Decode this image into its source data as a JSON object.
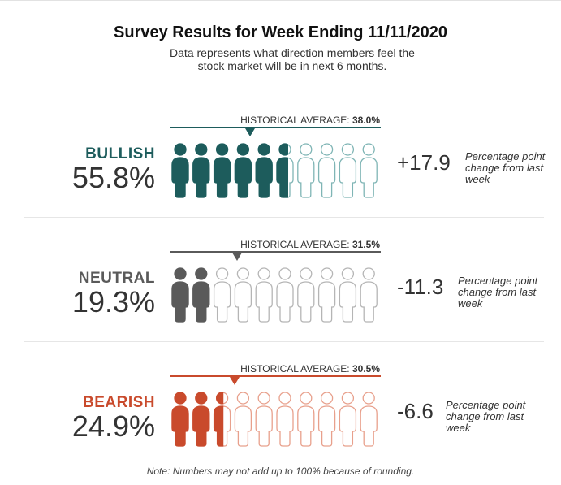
{
  "header": {
    "title": "Survey Results for Week Ending 11/11/2020",
    "subtitle": "Data represents what direction members feel the stock market will be in next 6 months."
  },
  "historical_prefix": "HISTORICAL AVERAGE:",
  "change_note": "Percentage point change from last week",
  "footnote": "Note: Numbers may not add up to 100% because of rounding.",
  "chart_data": {
    "type": "pictograph",
    "title": "Survey Results for Week Ending 11/11/2020",
    "subtitle": "Data represents what direction members feel the stock market will be in next 6 months.",
    "icons_total": 10,
    "scale": [
      0,
      100
    ],
    "rows": [
      {
        "name": "BULLISH",
        "value": 55.8,
        "value_label": "55.8%",
        "historical_average": 38.0,
        "historical_label": "38.0%",
        "change": 17.9,
        "change_label": "+17.9",
        "color": "#1d5c5c",
        "light_color": "#7fb5b5"
      },
      {
        "name": "NEUTRAL",
        "value": 19.3,
        "value_label": "19.3%",
        "historical_average": 31.5,
        "historical_label": "31.5%",
        "change": -11.3,
        "change_label": "-11.3",
        "color": "#5a5a5a",
        "light_color": "#b5b5b5"
      },
      {
        "name": "BEARISH",
        "value": 24.9,
        "value_label": "24.9%",
        "historical_average": 30.5,
        "historical_label": "30.5%",
        "change": -6.6,
        "change_label": "-6.6",
        "color": "#c94a2c",
        "light_color": "#e8a08c"
      }
    ]
  }
}
